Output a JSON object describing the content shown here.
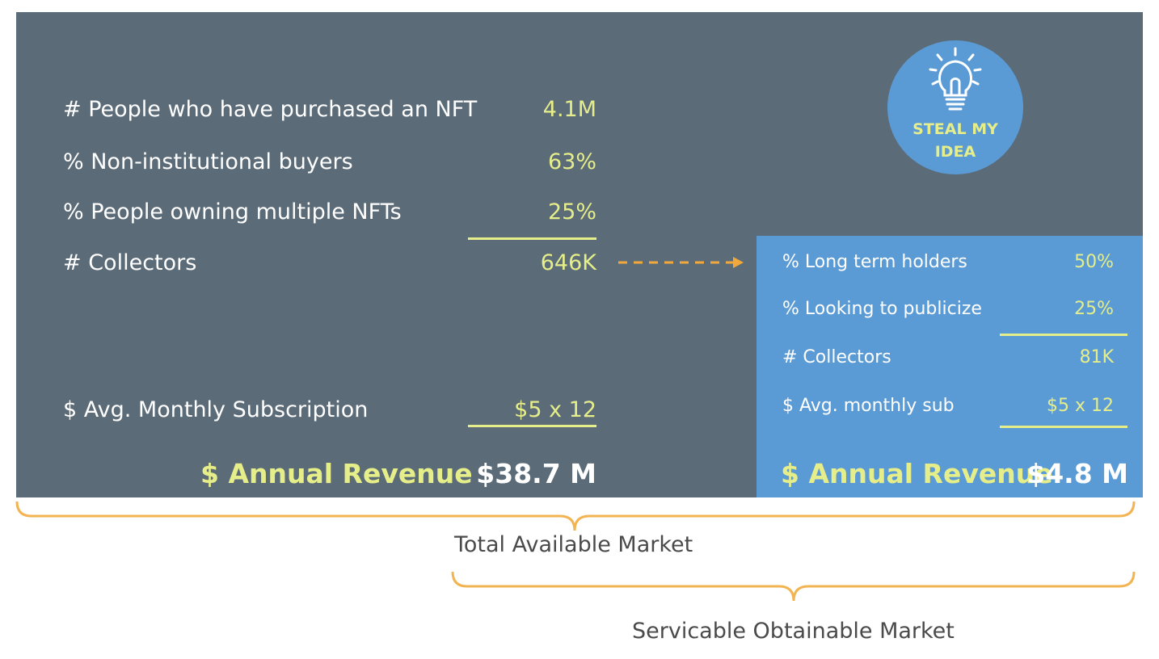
{
  "tam": {
    "rows": [
      {
        "label": "# People who have purchased an NFT",
        "value": "4.1M"
      },
      {
        "label": "% Non-institutional buyers",
        "value": "63%"
      },
      {
        "label": "% People owning multiple NFTs",
        "value": "25%"
      },
      {
        "label": "# Collectors",
        "value": "646K"
      }
    ],
    "subscription": {
      "label": "$ Avg. Monthly Subscription",
      "value": "$5 x 12"
    },
    "revenue": {
      "label": "$ Annual Revenue",
      "value": "$38.7 M"
    }
  },
  "som": {
    "rows": [
      {
        "label": "% Long term holders",
        "value": "50%"
      },
      {
        "label": "% Looking to publicize",
        "value": "25%"
      },
      {
        "label": "# Collectors",
        "value": "81K"
      },
      {
        "label": "$ Avg. monthly sub",
        "value": "$5 x 12"
      }
    ],
    "revenue": {
      "label": "$ Annual Revenue",
      "value": "$4.8 M"
    }
  },
  "badge": {
    "line1": "STEAL MY",
    "line2": "IDEA",
    "icon": "lightbulb-icon"
  },
  "brackets": {
    "total_label": "Total Available Market",
    "obtainable_label": "Servicable Obtainable Market"
  },
  "colors": {
    "dark_panel": "#5b6b78",
    "blue_panel": "#5b9bd5",
    "accent_yellow": "#e6ee8a",
    "bracket_orange": "#f2b451",
    "arrow_orange": "#f2a93b"
  }
}
